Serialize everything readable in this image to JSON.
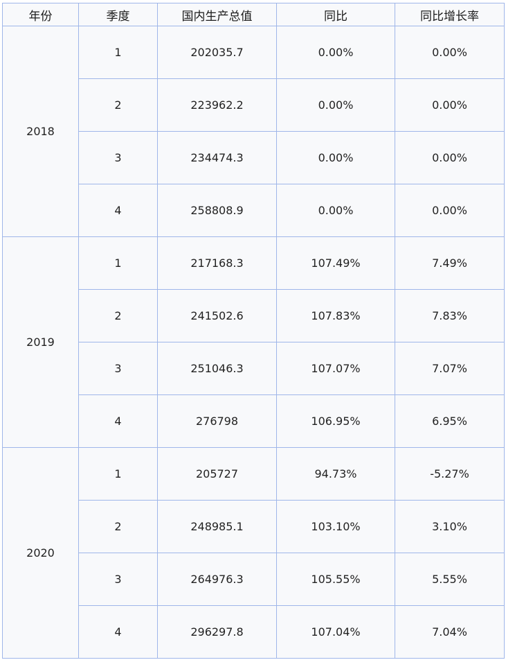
{
  "table": {
    "headers": [
      "年份",
      "季度",
      "国内生产总值",
      "同比",
      "同比增长率"
    ],
    "groups": [
      {
        "year": "2018",
        "rows": [
          {
            "quarter": "1",
            "gdp": "202035.7",
            "yoy": "0.00%",
            "growth": "0.00%"
          },
          {
            "quarter": "2",
            "gdp": "223962.2",
            "yoy": "0.00%",
            "growth": "0.00%"
          },
          {
            "quarter": "3",
            "gdp": "234474.3",
            "yoy": "0.00%",
            "growth": "0.00%"
          },
          {
            "quarter": "4",
            "gdp": "258808.9",
            "yoy": "0.00%",
            "growth": "0.00%"
          }
        ]
      },
      {
        "year": "2019",
        "rows": [
          {
            "quarter": "1",
            "gdp": "217168.3",
            "yoy": "107.49%",
            "growth": "7.49%"
          },
          {
            "quarter": "2",
            "gdp": "241502.6",
            "yoy": "107.83%",
            "growth": "7.83%"
          },
          {
            "quarter": "3",
            "gdp": "251046.3",
            "yoy": "107.07%",
            "growth": "7.07%"
          },
          {
            "quarter": "4",
            "gdp": "276798",
            "yoy": "106.95%",
            "growth": "6.95%"
          }
        ]
      },
      {
        "year": "2020",
        "rows": [
          {
            "quarter": "1",
            "gdp": "205727",
            "yoy": "94.73%",
            "growth": "-5.27%"
          },
          {
            "quarter": "2",
            "gdp": "248985.1",
            "yoy": "103.10%",
            "growth": "3.10%"
          },
          {
            "quarter": "3",
            "gdp": "264976.3",
            "yoy": "105.55%",
            "growth": "5.55%"
          },
          {
            "quarter": "4",
            "gdp": "296297.8",
            "yoy": "107.04%",
            "growth": "7.04%"
          }
        ]
      }
    ]
  },
  "colors": {
    "border": "#9fb6e9",
    "cell_background": "#f8f9fb",
    "text": "#222222"
  }
}
